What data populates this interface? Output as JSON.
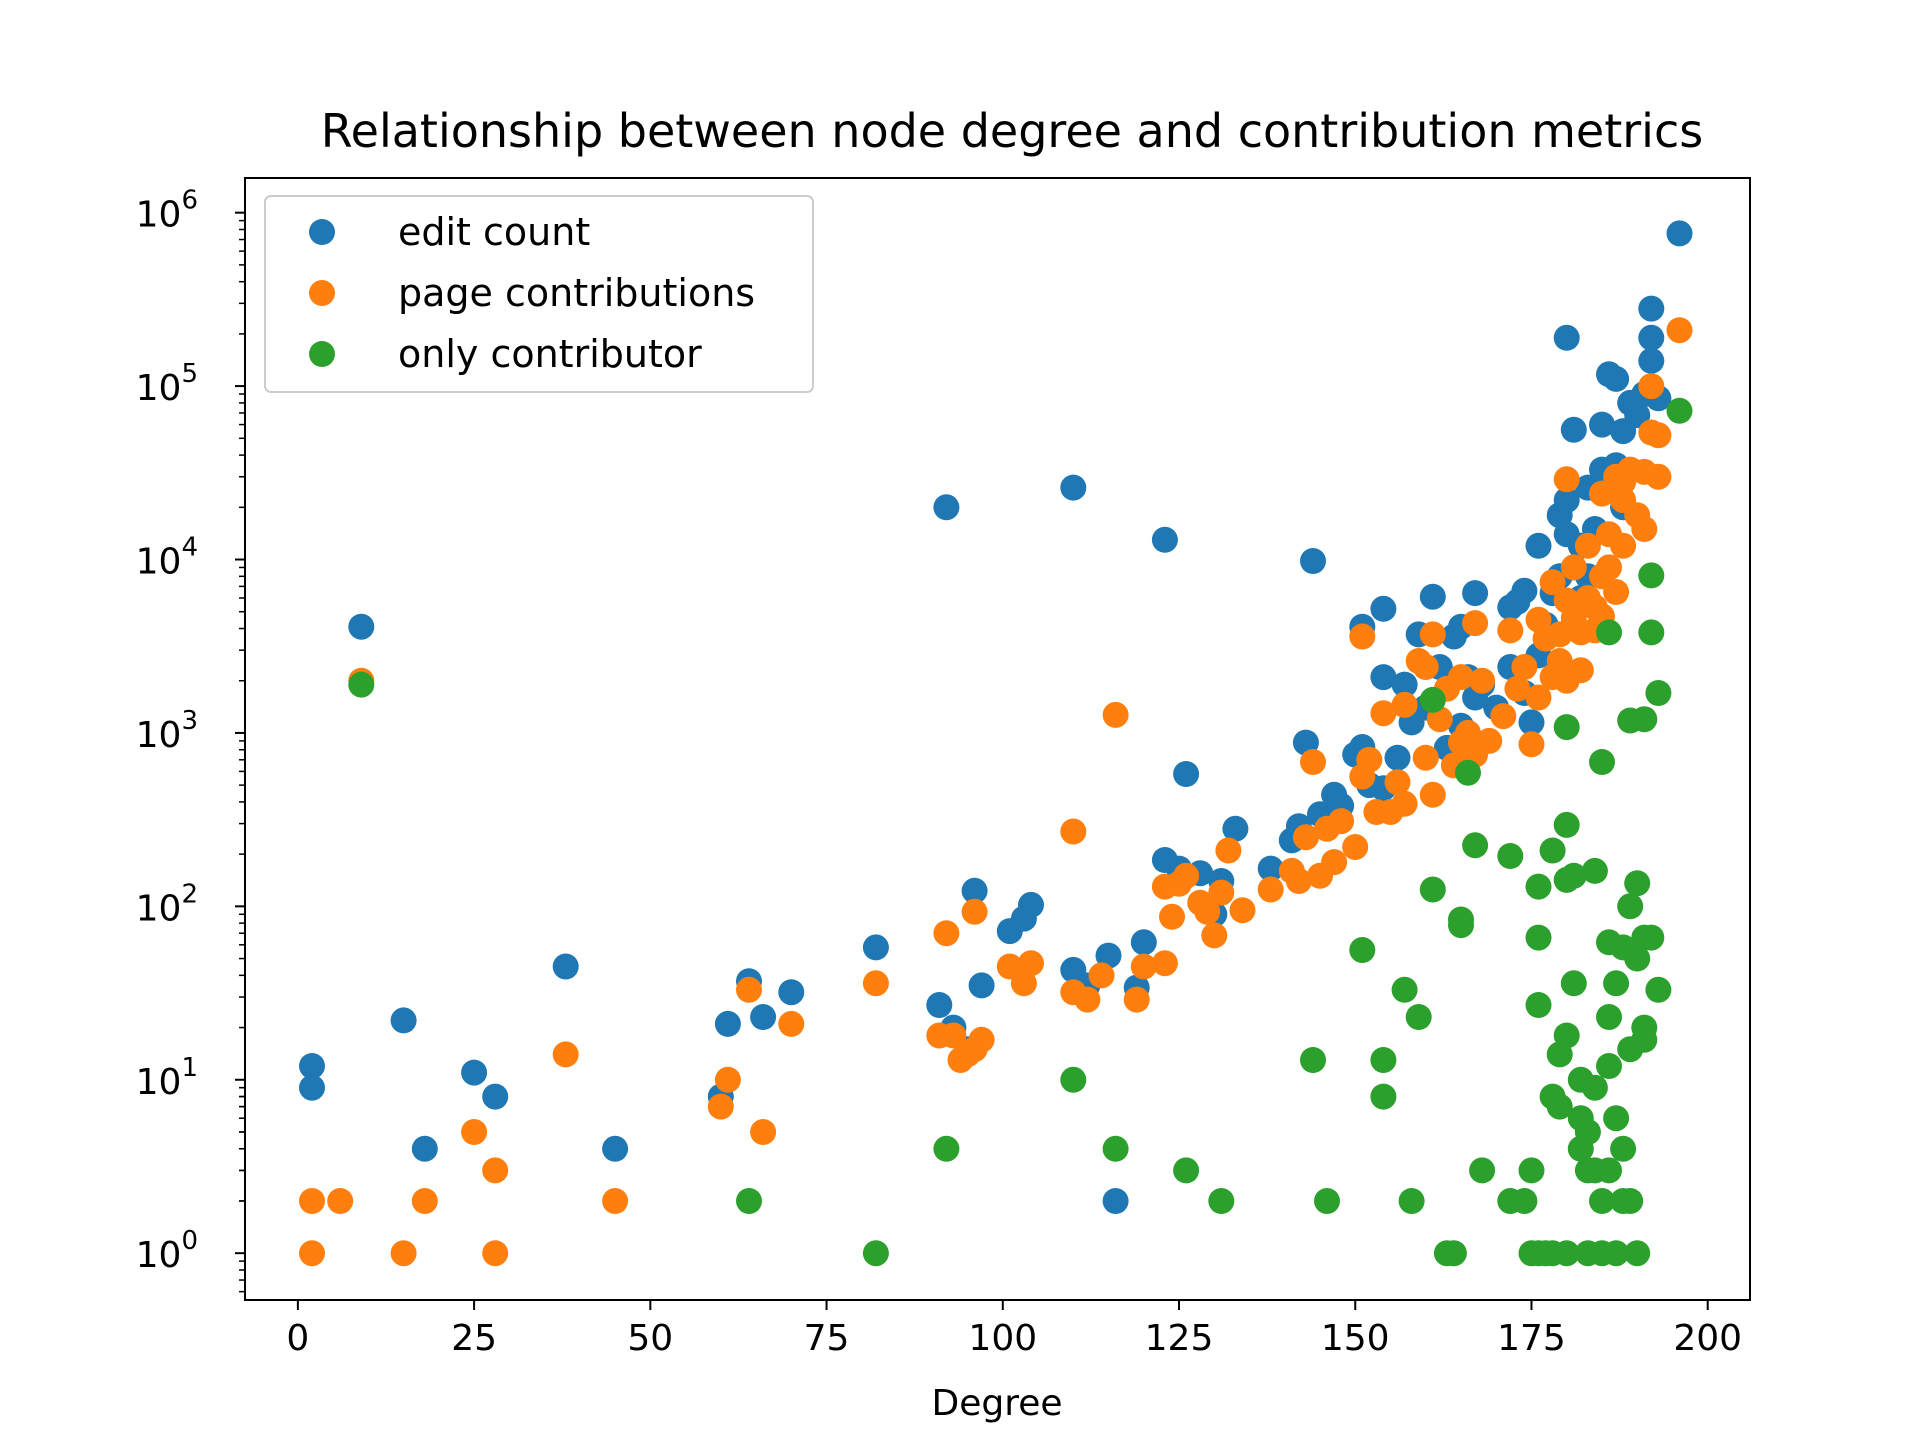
{
  "chart_data": {
    "type": "scatter",
    "title": "Relationship between node degree and contribution metrics",
    "xlabel": "Degree",
    "ylabel": "",
    "xlim": [
      -7.5,
      206
    ],
    "ylim_log10": [
      -0.27,
      6.2
    ],
    "yscale": "log",
    "grid": false,
    "legend_position": "top-left",
    "x_ticks": [
      0,
      25,
      50,
      75,
      100,
      125,
      150,
      175,
      200
    ],
    "y_ticks": [
      {
        "value": 1,
        "base": "10",
        "exp": "0"
      },
      {
        "value": 10,
        "base": "10",
        "exp": "1"
      },
      {
        "value": 100,
        "base": "10",
        "exp": "2"
      },
      {
        "value": 1000,
        "base": "10",
        "exp": "3"
      },
      {
        "value": 10000,
        "base": "10",
        "exp": "4"
      },
      {
        "value": 100000,
        "base": "10",
        "exp": "5"
      },
      {
        "value": 1000000,
        "base": "10",
        "exp": "6"
      }
    ],
    "series": [
      {
        "name": "edit count",
        "color": "#1f77b4",
        "points": [
          [
            2,
            12
          ],
          [
            2,
            9
          ],
          [
            9,
            4100
          ],
          [
            15,
            22
          ],
          [
            18,
            4
          ],
          [
            25,
            11
          ],
          [
            28,
            8
          ],
          [
            38,
            45
          ],
          [
            45,
            4
          ],
          [
            60,
            8
          ],
          [
            61,
            21
          ],
          [
            64,
            37
          ],
          [
            66,
            23
          ],
          [
            70,
            32
          ],
          [
            82,
            58
          ],
          [
            91,
            27
          ],
          [
            92,
            20000
          ],
          [
            93,
            20
          ],
          [
            95,
            15
          ],
          [
            96,
            123
          ],
          [
            97,
            35
          ],
          [
            101,
            72
          ],
          [
            103,
            85
          ],
          [
            104,
            102
          ],
          [
            110,
            26000
          ],
          [
            110,
            43
          ],
          [
            112,
            35
          ],
          [
            115,
            52
          ],
          [
            116,
            2
          ],
          [
            119,
            34
          ],
          [
            120,
            62
          ],
          [
            123,
            13000
          ],
          [
            123,
            185
          ],
          [
            125,
            165
          ],
          [
            126,
            580
          ],
          [
            128,
            155
          ],
          [
            130,
            90
          ],
          [
            131,
            140
          ],
          [
            133,
            280
          ],
          [
            138,
            165
          ],
          [
            141,
            240
          ],
          [
            142,
            290
          ],
          [
            143,
            880
          ],
          [
            144,
            9800
          ],
          [
            145,
            340
          ],
          [
            147,
            440
          ],
          [
            148,
            380
          ],
          [
            150,
            750
          ],
          [
            151,
            4100
          ],
          [
            151,
            830
          ],
          [
            152,
            500
          ],
          [
            154,
            5200
          ],
          [
            154,
            2100
          ],
          [
            154,
            480
          ],
          [
            156,
            720
          ],
          [
            157,
            1900
          ],
          [
            158,
            1150
          ],
          [
            159,
            3700
          ],
          [
            160,
            1400
          ],
          [
            161,
            6100
          ],
          [
            162,
            2400
          ],
          [
            163,
            820
          ],
          [
            164,
            3600
          ],
          [
            165,
            4100
          ],
          [
            165,
            1100
          ],
          [
            166,
            2100
          ],
          [
            167,
            6400
          ],
          [
            167,
            1600
          ],
          [
            168,
            1900
          ],
          [
            170,
            1400
          ],
          [
            172,
            5300
          ],
          [
            172,
            2400
          ],
          [
            173,
            5700
          ],
          [
            174,
            1700
          ],
          [
            174,
            6600
          ],
          [
            175,
            1150
          ],
          [
            176,
            12000
          ],
          [
            176,
            2800
          ],
          [
            177,
            4200
          ],
          [
            178,
            6400
          ],
          [
            179,
            18000
          ],
          [
            179,
            8000
          ],
          [
            180,
            190000
          ],
          [
            180,
            22000
          ],
          [
            180,
            14000
          ],
          [
            181,
            56000
          ],
          [
            181,
            9000
          ],
          [
            182,
            12000
          ],
          [
            182,
            6000
          ],
          [
            183,
            26000
          ],
          [
            183,
            8000
          ],
          [
            184,
            15000
          ],
          [
            185,
            33000
          ],
          [
            185,
            60000
          ],
          [
            186,
            30000
          ],
          [
            186,
            117000
          ],
          [
            187,
            110000
          ],
          [
            187,
            35000
          ],
          [
            188,
            55000
          ],
          [
            188,
            20000
          ],
          [
            189,
            80000
          ],
          [
            190,
            68000
          ],
          [
            191,
            90000
          ],
          [
            192,
            280000
          ],
          [
            192,
            190000
          ],
          [
            192,
            140000
          ],
          [
            193,
            85000
          ],
          [
            196,
            760000
          ]
        ]
      },
      {
        "name": "page contributions",
        "color": "#ff7f0e",
        "points": [
          [
            2,
            2
          ],
          [
            2,
            1
          ],
          [
            6,
            2
          ],
          [
            9,
            2000
          ],
          [
            15,
            1
          ],
          [
            18,
            2
          ],
          [
            25,
            5
          ],
          [
            28,
            3
          ],
          [
            28,
            1
          ],
          [
            38,
            14
          ],
          [
            45,
            2
          ],
          [
            60,
            7
          ],
          [
            61,
            10
          ],
          [
            64,
            33
          ],
          [
            66,
            5
          ],
          [
            70,
            21
          ],
          [
            82,
            36
          ],
          [
            91,
            18
          ],
          [
            92,
            70
          ],
          [
            93,
            18
          ],
          [
            94,
            13
          ],
          [
            95,
            14
          ],
          [
            96,
            93
          ],
          [
            96,
            15
          ],
          [
            97,
            17
          ],
          [
            101,
            45
          ],
          [
            103,
            36
          ],
          [
            104,
            47
          ],
          [
            110,
            270
          ],
          [
            110,
            32
          ],
          [
            112,
            29
          ],
          [
            114,
            40
          ],
          [
            116,
            1270
          ],
          [
            119,
            29
          ],
          [
            120,
            45
          ],
          [
            123,
            47
          ],
          [
            123,
            130
          ],
          [
            124,
            87
          ],
          [
            125,
            135
          ],
          [
            126,
            150
          ],
          [
            128,
            105
          ],
          [
            129,
            93
          ],
          [
            130,
            68
          ],
          [
            131,
            120
          ],
          [
            132,
            210
          ],
          [
            134,
            95
          ],
          [
            138,
            125
          ],
          [
            141,
            160
          ],
          [
            142,
            140
          ],
          [
            143,
            250
          ],
          [
            144,
            680
          ],
          [
            145,
            150
          ],
          [
            146,
            280
          ],
          [
            147,
            180
          ],
          [
            148,
            310
          ],
          [
            150,
            220
          ],
          [
            151,
            560
          ],
          [
            151,
            3600
          ],
          [
            152,
            700
          ],
          [
            153,
            350
          ],
          [
            154,
            1300
          ],
          [
            155,
            350
          ],
          [
            156,
            520
          ],
          [
            157,
            390
          ],
          [
            157,
            1450
          ],
          [
            159,
            2600
          ],
          [
            160,
            720
          ],
          [
            160,
            2400
          ],
          [
            161,
            3700
          ],
          [
            161,
            440
          ],
          [
            162,
            1200
          ],
          [
            163,
            1800
          ],
          [
            164,
            650
          ],
          [
            165,
            2100
          ],
          [
            165,
            880
          ],
          [
            166,
            1000
          ],
          [
            167,
            4300
          ],
          [
            167,
            750
          ],
          [
            168,
            2000
          ],
          [
            169,
            900
          ],
          [
            171,
            1250
          ],
          [
            172,
            3900
          ],
          [
            173,
            1800
          ],
          [
            174,
            2400
          ],
          [
            175,
            860
          ],
          [
            176,
            4500
          ],
          [
            176,
            1600
          ],
          [
            177,
            3500
          ],
          [
            178,
            7400
          ],
          [
            178,
            2100
          ],
          [
            179,
            3700
          ],
          [
            179,
            2600
          ],
          [
            180,
            29000
          ],
          [
            180,
            5800
          ],
          [
            180,
            2000
          ],
          [
            181,
            9000
          ],
          [
            181,
            4600
          ],
          [
            182,
            3800
          ],
          [
            182,
            2300
          ],
          [
            183,
            12000
          ],
          [
            183,
            6000
          ],
          [
            184,
            5300
          ],
          [
            184,
            3900
          ],
          [
            185,
            8000
          ],
          [
            185,
            24000
          ],
          [
            185,
            4700
          ],
          [
            186,
            14000
          ],
          [
            186,
            9000
          ],
          [
            187,
            6500
          ],
          [
            187,
            30000
          ],
          [
            188,
            28000
          ],
          [
            188,
            22000
          ],
          [
            188,
            12000
          ],
          [
            189,
            33000
          ],
          [
            190,
            18000
          ],
          [
            191,
            15000
          ],
          [
            191,
            32000
          ],
          [
            192,
            100000
          ],
          [
            192,
            54000
          ],
          [
            193,
            52000
          ],
          [
            193,
            30000
          ],
          [
            196,
            210000
          ]
        ]
      },
      {
        "name": "only contributor",
        "color": "#2ca02c",
        "points": [
          [
            9,
            1900
          ],
          [
            64,
            2
          ],
          [
            82,
            1
          ],
          [
            92,
            4
          ],
          [
            110,
            10
          ],
          [
            116,
            4
          ],
          [
            126,
            3
          ],
          [
            131,
            2
          ],
          [
            144,
            13
          ],
          [
            146,
            2
          ],
          [
            151,
            56
          ],
          [
            154,
            13
          ],
          [
            154,
            8
          ],
          [
            157,
            33
          ],
          [
            158,
            2
          ],
          [
            159,
            23
          ],
          [
            161,
            1550
          ],
          [
            161,
            125
          ],
          [
            163,
            1
          ],
          [
            164,
            1
          ],
          [
            165,
            84
          ],
          [
            165,
            78
          ],
          [
            166,
            590
          ],
          [
            167,
            225
          ],
          [
            168,
            3
          ],
          [
            172,
            2
          ],
          [
            172,
            195
          ],
          [
            174,
            2
          ],
          [
            175,
            1
          ],
          [
            175,
            3
          ],
          [
            176,
            1
          ],
          [
            176,
            130
          ],
          [
            176,
            66
          ],
          [
            176,
            27
          ],
          [
            177,
            1
          ],
          [
            178,
            1
          ],
          [
            178,
            210
          ],
          [
            178,
            8
          ],
          [
            179,
            7
          ],
          [
            179,
            14
          ],
          [
            180,
            1
          ],
          [
            180,
            1080
          ],
          [
            180,
            295
          ],
          [
            180,
            142
          ],
          [
            180,
            18
          ],
          [
            181,
            36
          ],
          [
            181,
            150
          ],
          [
            182,
            10
          ],
          [
            182,
            6
          ],
          [
            182,
            4
          ],
          [
            183,
            5
          ],
          [
            183,
            3
          ],
          [
            183,
            1
          ],
          [
            184,
            160
          ],
          [
            184,
            3
          ],
          [
            184,
            9
          ],
          [
            185,
            680
          ],
          [
            185,
            2
          ],
          [
            185,
            1
          ],
          [
            186,
            3800
          ],
          [
            186,
            62
          ],
          [
            186,
            23
          ],
          [
            186,
            12
          ],
          [
            186,
            3
          ],
          [
            187,
            36
          ],
          [
            187,
            6
          ],
          [
            187,
            1
          ],
          [
            188,
            4
          ],
          [
            188,
            58
          ],
          [
            188,
            2
          ],
          [
            189,
            1180
          ],
          [
            189,
            100
          ],
          [
            189,
            15
          ],
          [
            189,
            2
          ],
          [
            190,
            1
          ],
          [
            190,
            136
          ],
          [
            190,
            50
          ],
          [
            191,
            1200
          ],
          [
            191,
            66
          ],
          [
            191,
            20
          ],
          [
            191,
            17
          ],
          [
            192,
            8100
          ],
          [
            192,
            3800
          ],
          [
            192,
            66
          ],
          [
            193,
            1700
          ],
          [
            193,
            33
          ],
          [
            196,
            72000
          ]
        ]
      }
    ]
  }
}
